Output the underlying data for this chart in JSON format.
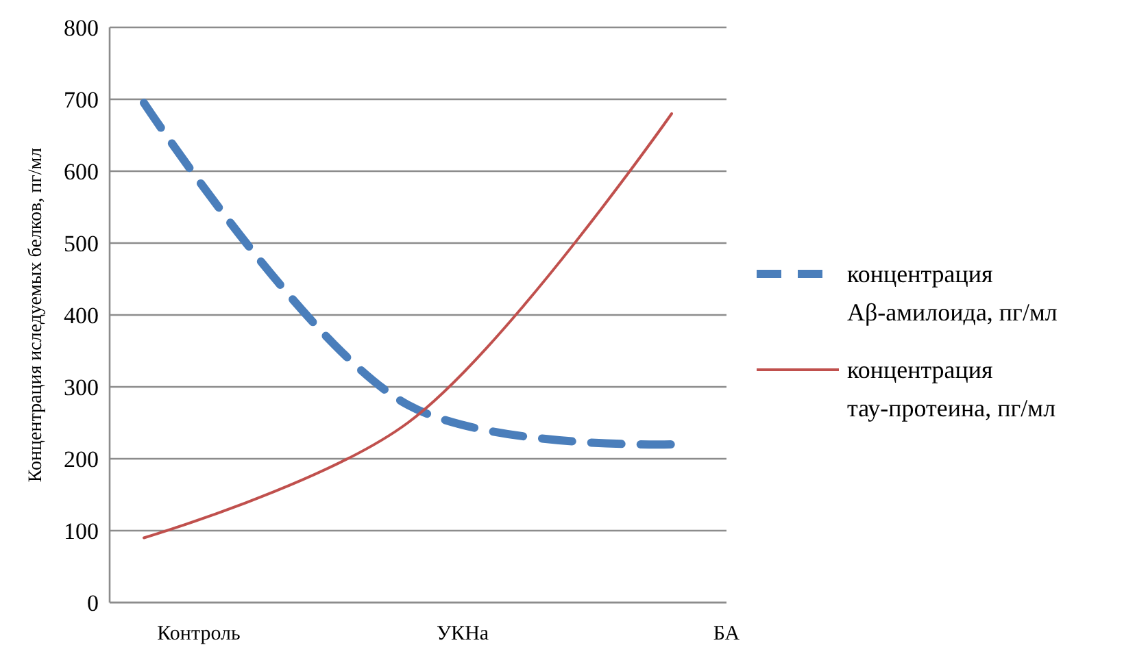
{
  "chart_data": {
    "type": "line",
    "ylabel": "Концентрация иследуемых белков, пг/мл",
    "categories": [
      "Контроль",
      "УКНа",
      "БА"
    ],
    "series": [
      {
        "name": "концентрация Aβ-амилоида, пг/мл",
        "color": "#4a7ebb",
        "values": [
          695,
          275,
          220
        ],
        "line_style": "dashed"
      },
      {
        "name": "концентрация тау-протеина, пг/мл",
        "color": "#c0504d",
        "values": [
          90,
          250,
          680
        ],
        "line_style": "solid"
      }
    ],
    "ylim": [
      0,
      800
    ],
    "yticks": [
      0,
      100,
      200,
      300,
      400,
      500,
      600,
      700,
      800
    ],
    "grid": "y",
    "legend": "right"
  }
}
